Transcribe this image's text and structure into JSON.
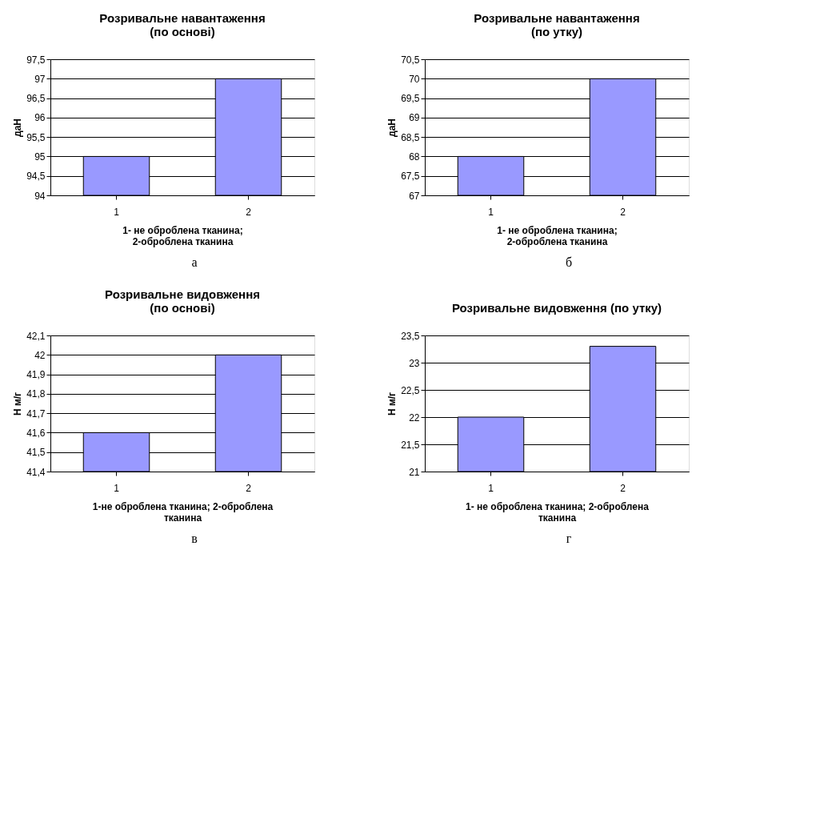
{
  "chart_data": [
    {
      "type": "bar",
      "title": "Розривальне навантаження\n(по основі)",
      "ylabel": "даН",
      "xlabel": "1- не оброблена тканина;\n2-оброблена тканина",
      "categories": [
        "1",
        "2"
      ],
      "values": [
        95,
        97
      ],
      "color": "#9999ff",
      "ylim": [
        94,
        97.5
      ],
      "yticks": [
        94,
        {
          "value": 94.5,
          "label": "94,5"
        },
        95,
        {
          "value": 95.5,
          "label": "95,5"
        },
        96,
        {
          "value": 96.5,
          "label": "96,5"
        },
        97,
        {
          "value": 97.5,
          "label": "97,5"
        }
      ],
      "grid": "y",
      "annotations": [
        "а"
      ]
    },
    {
      "type": "bar",
      "title": "Розривальне навантаження\n(по утку)",
      "ylabel": "даН",
      "xlabel": "1- не оброблена тканина;\n2-оброблена тканина",
      "categories": [
        "1",
        "2"
      ],
      "values": [
        68,
        70
      ],
      "color": "#9999ff",
      "ylim": [
        67,
        70.5
      ],
      "yticks": [
        67,
        {
          "value": 67.5,
          "label": "67,5"
        },
        68,
        {
          "value": 68.5,
          "label": "68,5"
        },
        69,
        {
          "value": 69.5,
          "label": "69,5"
        },
        70,
        {
          "value": 70.5,
          "label": "70,5"
        }
      ],
      "grid": "y",
      "annotations": [
        "б"
      ]
    },
    {
      "type": "bar",
      "title": "Розривальне видовження\n(по основі)",
      "ylabel": "Н м/г",
      "xlabel": "1-не оброблена тканина; 2-оброблена\nтканина",
      "categories": [
        "1",
        "2"
      ],
      "values": [
        41.6,
        42
      ],
      "color": "#9999ff",
      "ylim": [
        41.4,
        42.1
      ],
      "yticks": [
        {
          "value": 41.4,
          "label": "41,4"
        },
        {
          "value": 41.5,
          "label": "41,5"
        },
        {
          "value": 41.6,
          "label": "41,6"
        },
        {
          "value": 41.7,
          "label": "41,7"
        },
        {
          "value": 41.8,
          "label": "41,8"
        },
        {
          "value": 41.9,
          "label": "41,9"
        },
        42,
        {
          "value": 42.1,
          "label": "42,1"
        }
      ],
      "grid": "y",
      "annotations": [
        "в"
      ]
    },
    {
      "type": "bar",
      "title": "Розривальне видовження (по утку)",
      "ylabel": "Н м/г",
      "xlabel": "1- не оброблена тканина; 2-оброблена\nтканина",
      "categories": [
        "1",
        "2"
      ],
      "values": [
        22,
        23.3
      ],
      "color": "#9999ff",
      "ylim": [
        21,
        23.5
      ],
      "yticks": [
        21,
        {
          "value": 21.5,
          "label": "21,5"
        },
        22,
        {
          "value": 22.5,
          "label": "22,5"
        },
        23,
        {
          "value": 23.5,
          "label": "23,5"
        }
      ],
      "grid": "y",
      "annotations": [
        "г"
      ]
    }
  ]
}
